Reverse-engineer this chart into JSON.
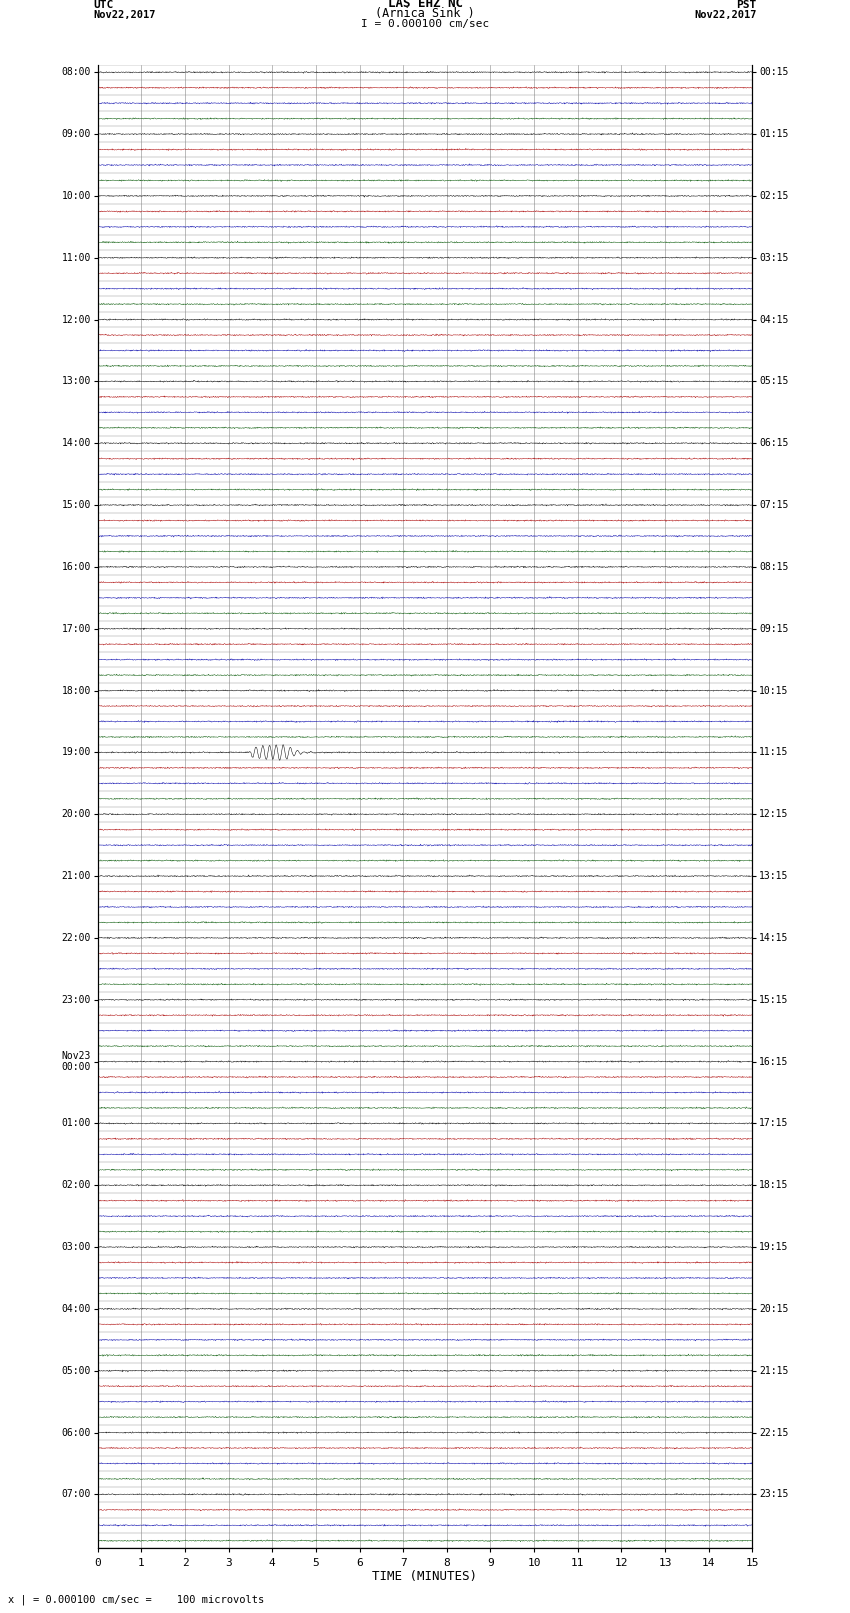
{
  "title_line1": "LAS EHZ NC",
  "title_line2": "(Arnica Sink )",
  "scale_text": "I = 0.000100 cm/sec",
  "left_label": "UTC",
  "left_date": "Nov22,2017",
  "right_label": "PST",
  "right_date": "Nov22,2017",
  "xlabel": "TIME (MINUTES)",
  "bottom_note": "x | = 0.000100 cm/sec =    100 microvolts",
  "xmin": 0,
  "xmax": 15,
  "background_color": "#ffffff",
  "grid_color": "#888888",
  "trace_colors": [
    "#000000",
    "#aa0000",
    "#0000aa",
    "#005500"
  ],
  "noise_amplitude": 0.018,
  "event_row": 44,
  "event_amplitude": 0.45,
  "figwidth": 8.5,
  "figheight": 16.13,
  "dpi": 100,
  "utc_times": [
    "08:00",
    "",
    "",
    "",
    "09:00",
    "",
    "",
    "",
    "10:00",
    "",
    "",
    "",
    "11:00",
    "",
    "",
    "",
    "12:00",
    "",
    "",
    "",
    "13:00",
    "",
    "",
    "",
    "14:00",
    "",
    "",
    "",
    "15:00",
    "",
    "",
    "",
    "16:00",
    "",
    "",
    "",
    "17:00",
    "",
    "",
    "",
    "18:00",
    "",
    "",
    "",
    "19:00",
    "",
    "",
    "",
    "20:00",
    "",
    "",
    "",
    "21:00",
    "",
    "",
    "",
    "22:00",
    "",
    "",
    "",
    "23:00",
    "",
    "",
    "",
    "Nov23\n00:00",
    "",
    "",
    "",
    "01:00",
    "",
    "",
    "",
    "02:00",
    "",
    "",
    "",
    "03:00",
    "",
    "",
    "",
    "04:00",
    "",
    "",
    "",
    "05:00",
    "",
    "",
    "",
    "06:00",
    "",
    "",
    "",
    "07:00",
    "",
    "",
    ""
  ],
  "pst_times": [
    "00:15",
    "",
    "",
    "",
    "01:15",
    "",
    "",
    "",
    "02:15",
    "",
    "",
    "",
    "03:15",
    "",
    "",
    "",
    "04:15",
    "",
    "",
    "",
    "05:15",
    "",
    "",
    "",
    "06:15",
    "",
    "",
    "",
    "07:15",
    "",
    "",
    "",
    "08:15",
    "",
    "",
    "",
    "09:15",
    "",
    "",
    "",
    "10:15",
    "",
    "",
    "",
    "11:15",
    "",
    "",
    "",
    "12:15",
    "",
    "",
    "",
    "13:15",
    "",
    "",
    "",
    "14:15",
    "",
    "",
    "",
    "15:15",
    "",
    "",
    "",
    "16:15",
    "",
    "",
    "",
    "17:15",
    "",
    "",
    "",
    "18:15",
    "",
    "",
    "",
    "19:15",
    "",
    "",
    "",
    "20:15",
    "",
    "",
    "",
    "21:15",
    "",
    "",
    "",
    "22:15",
    "",
    "",
    "",
    "23:15",
    "",
    "",
    ""
  ]
}
